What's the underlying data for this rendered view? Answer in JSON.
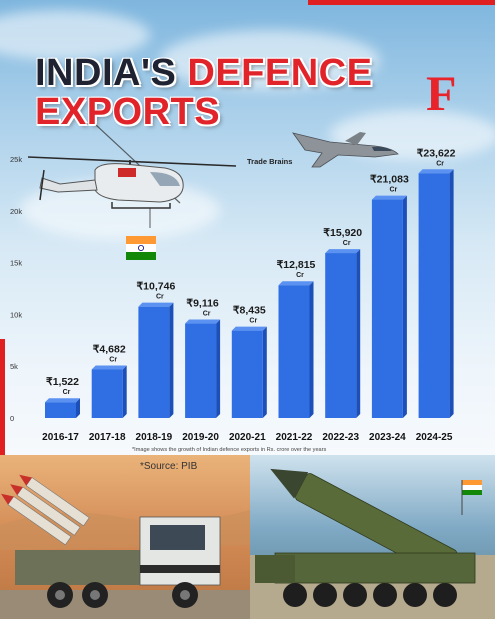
{
  "title": {
    "line1_a": "INDIA'S",
    "line1_b": "DEFENCE",
    "line2": "EXPORTS"
  },
  "logo": "F",
  "brand_text": "Trade Brains",
  "note": "*Image shows the growth of Indian defence exports in Rs. crore over the years",
  "source": "*Source: PIB",
  "colors": {
    "bar": "#2f6fe3",
    "bar_side": "#1d4fb8",
    "bar_top": "#5b91f0",
    "title_red": "#e0242a",
    "title_dark": "#1f2230",
    "accent_red": "#e02020"
  },
  "icons": [
    "helicopter-icon",
    "fighter-jet-icon",
    "india-flag-icon",
    "missile-launcher-icon",
    "missile-truck-icon"
  ],
  "chart_data": {
    "type": "bar",
    "title": "INDIA'S DEFENCE EXPORTS",
    "categories": [
      "2016-17",
      "2017-18",
      "2018-19",
      "2019-20",
      "2020-21",
      "2021-22",
      "2022-23",
      "2023-24",
      "2024-25"
    ],
    "values": [
      1522,
      4682,
      10746,
      9116,
      8435,
      12815,
      15920,
      21083,
      23622
    ],
    "labels": [
      "₹1,522",
      "₹4,682",
      "₹10,746",
      "₹9,116",
      "₹8,435",
      "₹12,815",
      "₹15,920",
      "₹21,083",
      "₹23,622"
    ],
    "unit": "Cr",
    "yticks": [
      "0",
      "5k",
      "10k",
      "15k",
      "20k",
      "25k"
    ],
    "ytick_values": [
      0,
      5000,
      10000,
      15000,
      20000,
      25000
    ],
    "ylim": [
      0,
      25000
    ],
    "xlabel": "",
    "ylabel": "",
    "grid": false,
    "legend": "none"
  }
}
